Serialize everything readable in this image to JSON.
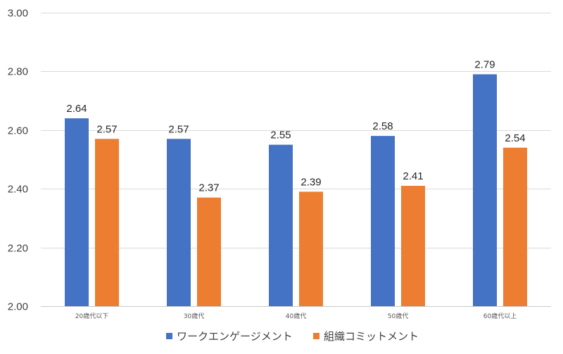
{
  "chart_data": {
    "type": "bar",
    "title": "",
    "xlabel": "",
    "ylabel": "",
    "ylim": [
      2.0,
      3.0
    ],
    "yticks": [
      2.0,
      2.2,
      2.4,
      2.6,
      2.8,
      3.0
    ],
    "ytick_labels": [
      "2.00",
      "2.20",
      "2.40",
      "2.60",
      "2.80",
      "3.00"
    ],
    "grid": true,
    "legend_position": "bottom",
    "categories": [
      "20歳代以下",
      "30歳代",
      "40歳代",
      "50歳代",
      "60歳代以上"
    ],
    "series": [
      {
        "name": "ワークエンゲージメント",
        "color": "#4472C4",
        "values": [
          2.64,
          2.57,
          2.55,
          2.58,
          2.79
        ],
        "labels": [
          "2.64",
          "2.57",
          "2.55",
          "2.58",
          "2.79"
        ]
      },
      {
        "name": "組織コミットメント",
        "color": "#ED7D31",
        "values": [
          2.57,
          2.37,
          2.39,
          2.41,
          2.54
        ],
        "labels": [
          "2.57",
          "2.37",
          "2.39",
          "2.41",
          "2.54"
        ]
      }
    ]
  }
}
